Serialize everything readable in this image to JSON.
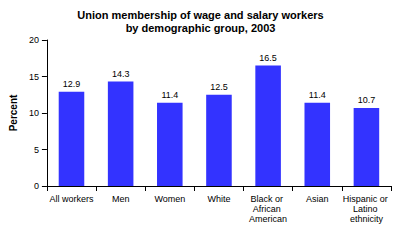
{
  "chart_data": {
    "type": "bar",
    "title": "Union membership of wage and salary workers\nby demographic group, 2003",
    "y_label": "Percent",
    "categories": [
      "All workers",
      "Men",
      "Women",
      "White",
      "Black or African American",
      "Asian",
      "Hispanic or Latino ethnicity"
    ],
    "values": [
      12.9,
      14.3,
      11.4,
      12.5,
      16.5,
      11.4,
      10.7
    ],
    "color": "#3333ff",
    "ylim": [
      0,
      20
    ],
    "yticks": [
      0,
      5,
      10,
      15,
      20
    ],
    "grid": false,
    "data_labels": true
  }
}
